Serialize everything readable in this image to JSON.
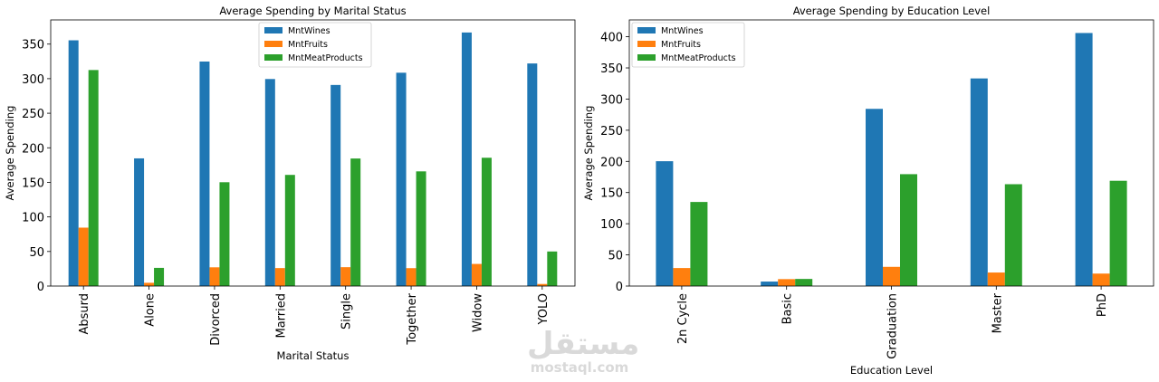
{
  "chart_data": [
    {
      "type": "bar",
      "title": "Average Spending by Marital Status",
      "xlabel": "Marital Status",
      "ylabel": "Average Spending",
      "categories": [
        "Absurd",
        "Alone",
        "Divorced",
        "Married",
        "Single",
        "Together",
        "Widow",
        "YOLO"
      ],
      "series": [
        {
          "name": "MntWines",
          "color": "#1f77b4",
          "values": [
            355.5,
            184.7,
            324.8,
            299.5,
            290.9,
            308.6,
            366.8,
            322.0
          ]
        },
        {
          "name": "MntFruits",
          "color": "#ff7f0e",
          "values": [
            84.5,
            4.7,
            27.1,
            26.0,
            27.3,
            25.9,
            32.0,
            3.0
          ]
        },
        {
          "name": "MntMeatProducts",
          "color": "#2ca02c",
          "values": [
            312.5,
            26.3,
            150.2,
            160.8,
            184.5,
            165.9,
            185.6,
            50.0
          ]
        }
      ],
      "ylim": [
        0,
        385
      ],
      "yticks": [
        0,
        50,
        100,
        150,
        200,
        250,
        300,
        350
      ],
      "legend": "top-center"
    },
    {
      "type": "bar",
      "title": "Average Spending by Education Level",
      "xlabel": "Education Level",
      "ylabel": "Average Spending",
      "categories": [
        "2n Cycle",
        "Basic",
        "Graduation",
        "Master",
        "PhD"
      ],
      "series": [
        {
          "name": "MntWines",
          "color": "#1f77b4",
          "values": [
            200.3,
            7.2,
            284.3,
            333.1,
            406.0
          ]
        },
        {
          "name": "MntFruits",
          "color": "#ff7f0e",
          "values": [
            28.9,
            11.1,
            30.8,
            21.7,
            20.0
          ]
        },
        {
          "name": "MntMeatProducts",
          "color": "#2ca02c",
          "values": [
            134.9,
            11.4,
            179.5,
            163.4,
            168.9
          ]
        }
      ],
      "ylim": [
        0,
        427
      ],
      "yticks": [
        0,
        50,
        100,
        150,
        200,
        250,
        300,
        350,
        400
      ],
      "legend": "top-left"
    }
  ],
  "watermark": {
    "arabic": "مستقل",
    "latin": "mostaql.com"
  }
}
